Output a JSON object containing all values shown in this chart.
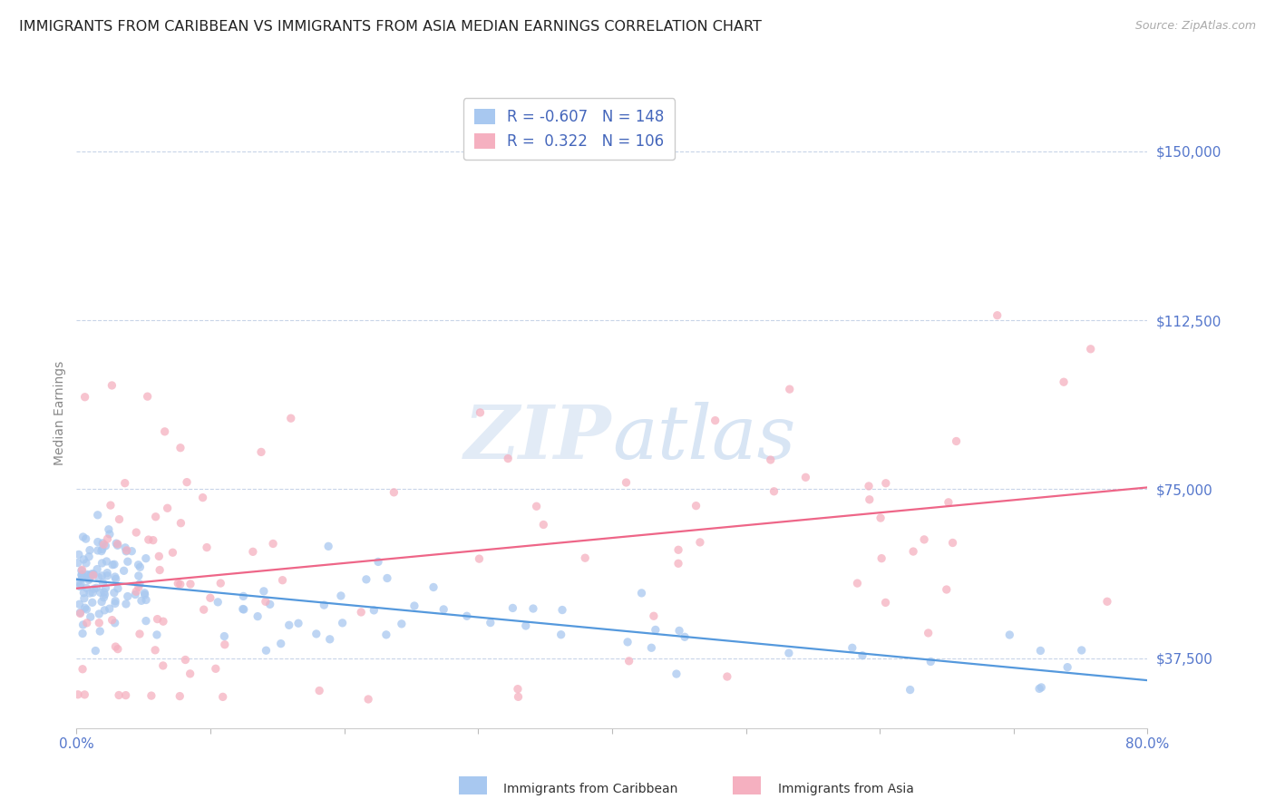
{
  "title": "IMMIGRANTS FROM CARIBBEAN VS IMMIGRANTS FROM ASIA MEDIAN EARNINGS CORRELATION CHART",
  "source": "Source: ZipAtlas.com",
  "ylabel": "Median Earnings",
  "y_ticks": [
    37500,
    75000,
    112500,
    150000
  ],
  "y_tick_labels": [
    "$37,500",
    "$75,000",
    "$112,500",
    "$150,000"
  ],
  "x_min": 0.0,
  "x_max": 0.8,
  "y_min": 22000,
  "y_max": 162000,
  "caribbean_R": -0.607,
  "caribbean_N": 148,
  "asia_R": 0.322,
  "asia_N": 106,
  "caribbean_color": "#a8c8f0",
  "asia_color": "#f5b0c0",
  "caribbean_line_color": "#5599dd",
  "asia_line_color": "#ee6688",
  "legend_label_caribbean": "Immigrants from Caribbean",
  "legend_label_asia": "Immigrants from Asia",
  "watermark_zip": "ZIP",
  "watermark_atlas": "atlas",
  "background_color": "#ffffff",
  "grid_color": "#c8d4e8",
  "title_color": "#222222",
  "tick_label_color": "#5577cc",
  "legend_text_color": "#4466bb",
  "source_color": "#aaaaaa"
}
